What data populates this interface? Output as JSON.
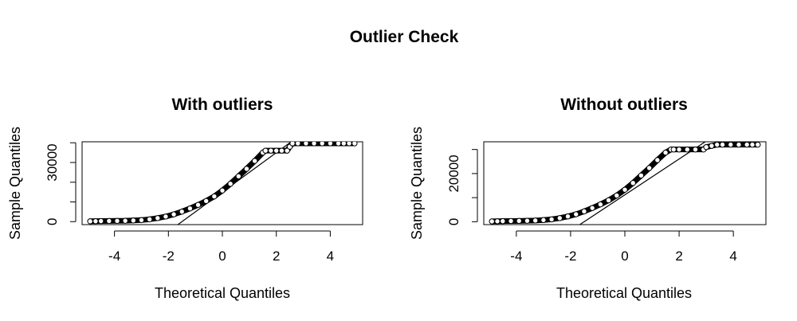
{
  "figure": {
    "title": "Outlier Check"
  },
  "chart_data": [
    {
      "type": "scatter",
      "subtype": "normal-qq",
      "title": "With outliers",
      "xlabel": "Theoretical Quantiles",
      "ylabel": "Sample Quantiles",
      "xlim": [
        -5.2,
        5.2
      ],
      "ylim": [
        -1500,
        40500
      ],
      "x_ticks": [
        -4,
        -2,
        0,
        2,
        4
      ],
      "x_tick_labels": [
        "-4",
        "-2",
        "0",
        "2",
        "4"
      ],
      "y_ticks": [
        0,
        10000,
        20000,
        30000,
        40000
      ],
      "y_tick_labels": [
        "0",
        "",
        "",
        "30000",
        ""
      ],
      "reference_line": {
        "x": [
          -1.5,
          2.0
        ],
        "y": [
          0,
          35000
        ]
      },
      "points": {
        "x": [
          -4.9,
          -4.7,
          -4.5,
          -4.2,
          -3.9,
          -3.6,
          -3.3,
          -3.0,
          -2.7,
          -2.4,
          -2.1,
          -1.8,
          -1.5,
          -1.2,
          -0.9,
          -0.6,
          -0.3,
          0.0,
          0.3,
          0.6,
          0.9,
          1.2,
          1.5,
          1.6,
          1.8,
          2.0,
          2.2,
          2.4,
          2.5,
          2.6,
          2.8,
          3.1,
          3.4,
          3.7,
          4.0,
          4.3,
          4.5,
          4.7,
          4.9
        ],
        "y": [
          200,
          250,
          300,
          350,
          400,
          450,
          600,
          800,
          1200,
          1800,
          2600,
          3700,
          5100,
          6700,
          8500,
          10500,
          12800,
          15800,
          19200,
          23000,
          26800,
          30800,
          35000,
          36000,
          36000,
          36000,
          36000,
          36000,
          38000,
          39700,
          39700,
          39700,
          39700,
          39700,
          39700,
          39700,
          39700,
          39700,
          39700
        ]
      }
    },
    {
      "type": "scatter",
      "subtype": "normal-qq",
      "title": "Without outliers",
      "xlabel": "Theoretical Quantiles",
      "ylabel": "Sample Quantiles",
      "xlim": [
        -5.2,
        5.2
      ],
      "ylim": [
        -1200,
        33200
      ],
      "x_ticks": [
        -4,
        -2,
        0,
        2,
        4
      ],
      "x_tick_labels": [
        "-4",
        "-2",
        "0",
        "2",
        "4"
      ],
      "y_ticks": [
        0,
        10000,
        20000,
        30000
      ],
      "y_tick_labels": [
        "0",
        "",
        "20000",
        ""
      ],
      "reference_line": {
        "x": [
          -1.5,
          2.8
        ],
        "y": [
          0,
          32000
        ]
      },
      "points": {
        "x": [
          -4.9,
          -4.7,
          -4.5,
          -4.2,
          -3.9,
          -3.6,
          -3.3,
          -3.0,
          -2.7,
          -2.4,
          -2.1,
          -1.8,
          -1.5,
          -1.2,
          -0.9,
          -0.6,
          -0.3,
          0.0,
          0.3,
          0.6,
          0.9,
          1.2,
          1.5,
          1.7,
          1.8,
          2.0,
          2.3,
          2.6,
          2.9,
          3.0,
          3.2,
          3.4,
          3.6,
          3.9,
          4.2,
          4.5,
          4.7,
          4.9
        ],
        "y": [
          150,
          200,
          250,
          300,
          350,
          400,
          500,
          700,
          1000,
          1500,
          2200,
          3100,
          4300,
          5700,
          7200,
          8900,
          10900,
          13300,
          16100,
          19200,
          22300,
          25600,
          28700,
          30000,
          30000,
          30000,
          30000,
          30000,
          30000,
          31000,
          31500,
          32000,
          32000,
          32000,
          32000,
          32000,
          32000,
          32000
        ]
      }
    }
  ]
}
